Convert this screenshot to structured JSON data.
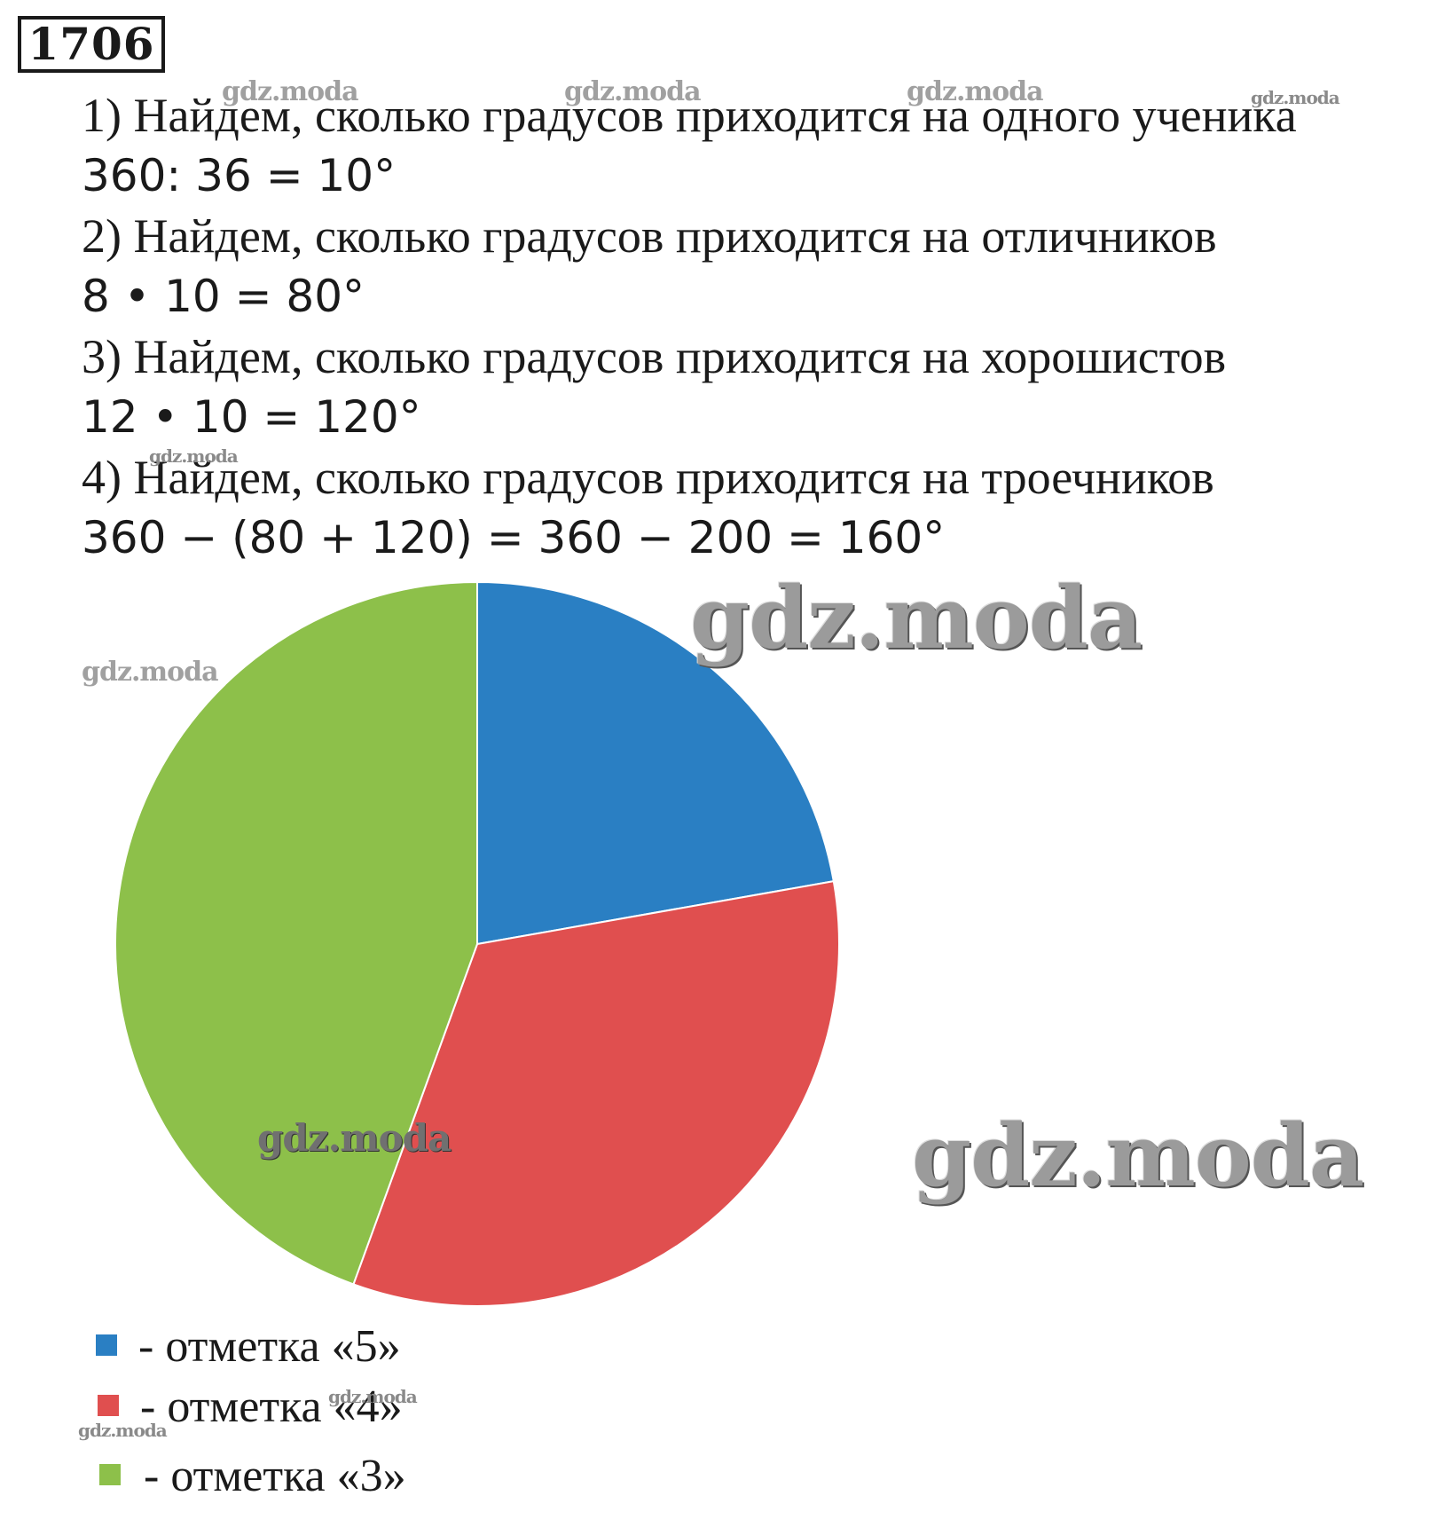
{
  "task_number": "1706",
  "steps": [
    {
      "text": "1) Найдем, сколько градусов приходится на одного ученика",
      "formula": "360: 36 = 10°"
    },
    {
      "text": "2) Найдем, сколько градусов приходится на отличников",
      "formula": "8 • 10 = 80°"
    },
    {
      "text": "3) Найдем, сколько градусов приходится на хорошистов",
      "formula": "12 • 10 = 120°"
    },
    {
      "text": "4) Найдем, сколько градусов приходится на троечников",
      "formula": "360 − (80 + 120) = 360 − 200 = 160°"
    }
  ],
  "watermark": "gdz.moda",
  "chart_data": {
    "type": "pie",
    "title": "",
    "slices": [
      {
        "label": "- отметка «5»",
        "value": 80,
        "color": "#2a7fc3"
      },
      {
        "label": "- отметка «4»",
        "value": 120,
        "color": "#e04f4f"
      },
      {
        "label": "- отметка «3»",
        "value": 160,
        "color": "#8dc04a"
      }
    ],
    "start_angle_deg": 0,
    "direction": "clockwise",
    "legend_placement": "bottom-left"
  }
}
